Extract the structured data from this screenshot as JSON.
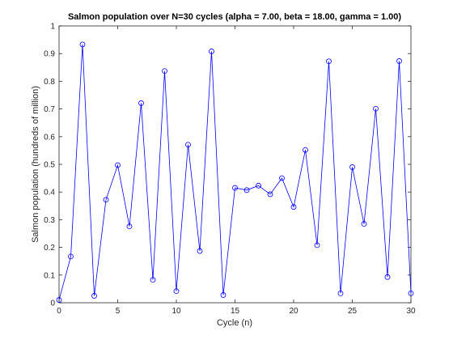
{
  "chart_data": {
    "type": "line",
    "title": "Salmon population over N=30 cycles (alpha = 7.00, beta = 18.00, gamma = 1.00)",
    "xlabel": "Cycle (n)",
    "ylabel": "Salmon population (hundreds of million)",
    "xlim": [
      0,
      30
    ],
    "ylim": [
      0,
      1
    ],
    "xticks": [
      0,
      5,
      10,
      15,
      20,
      25,
      30
    ],
    "yticks": [
      0,
      0.1,
      0.2,
      0.3,
      0.4,
      0.5,
      0.6,
      0.7,
      0.8,
      0.9,
      1
    ],
    "xtick_labels": [
      "0",
      "5",
      "10",
      "15",
      "20",
      "25",
      "30"
    ],
    "ytick_labels": [
      "0",
      "0.1",
      "0.2",
      "0.3",
      "0.4",
      "0.5",
      "0.6",
      "0.7",
      "0.8",
      "0.9",
      "1"
    ],
    "grid": false,
    "box": true,
    "marker": "circle",
    "series": [
      {
        "color": "#0000ff",
        "x": [
          0,
          1,
          2,
          3,
          4,
          5,
          6,
          7,
          8,
          9,
          10,
          11,
          12,
          13,
          14,
          15,
          16,
          17,
          18,
          19,
          20,
          21,
          22,
          23,
          24,
          25,
          26,
          27,
          28,
          29,
          30
        ],
        "y": [
          0.01,
          0.167,
          0.933,
          0.025,
          0.372,
          0.497,
          0.276,
          0.721,
          0.083,
          0.837,
          0.042,
          0.571,
          0.187,
          0.908,
          0.028,
          0.415,
          0.407,
          0.423,
          0.392,
          0.45,
          0.346,
          0.552,
          0.208,
          0.872,
          0.034,
          0.49,
          0.285,
          0.701,
          0.093,
          0.873,
          0.034
        ]
      }
    ]
  }
}
